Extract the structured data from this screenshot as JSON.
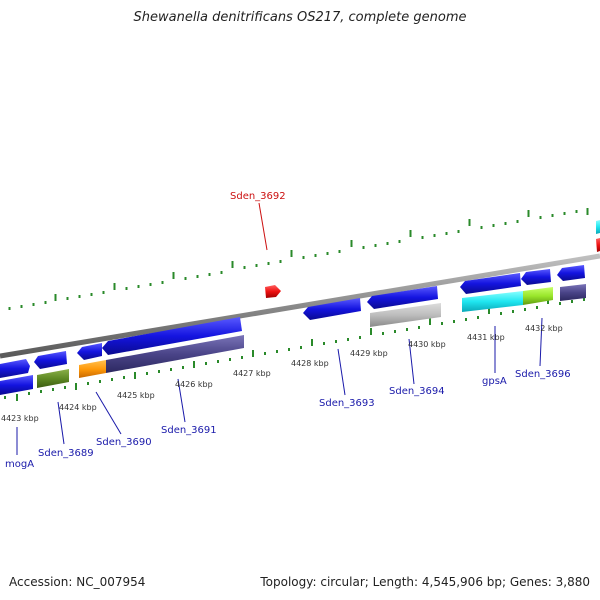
{
  "title": "Shewanella denitrificans OS217, complete genome",
  "footer": {
    "accession": "Accession: NC_007954",
    "summary": "Topology: circular; Length: 4,545,906 bp; Genes: 3,880"
  },
  "colors": {
    "forward_gene": "#1414e0",
    "backbone": "#8a8a8a",
    "tick": "#2a8a2a",
    "label_blue": "#1a1aaa",
    "label_red": "#cc1111",
    "highlight_gene": "#ee1111"
  },
  "tick_labels": [
    "4423 kbp",
    "4424 kbp",
    "4425 kbp",
    "4426 kbp",
    "4427 kbp",
    "4428 kbp",
    "4429 kbp",
    "4430 kbp",
    "4431 kbp",
    "4432 kbp"
  ],
  "gene_labels": {
    "sden_3692": "Sden_3692",
    "moga": "mogA",
    "sden_3689": "Sden_3689",
    "sden_3690": "Sden_3690",
    "sden_3691": "Sden_3691",
    "sden_3693": "Sden_3693",
    "sden_3694": "Sden_3694",
    "gpsa": "gpsA",
    "sden_3696": "Sden_3696"
  }
}
